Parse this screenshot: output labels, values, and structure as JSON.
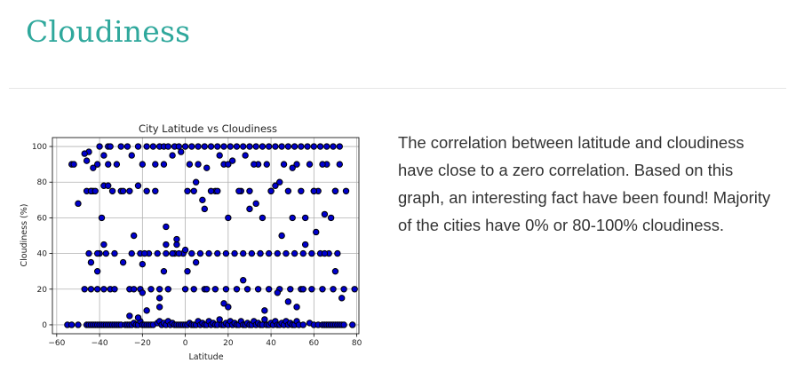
{
  "header": {
    "title": "Cloudiness"
  },
  "description": "The correlation between latitude and cloudiness have close to a zero correlation. Based on this graph, an interesting fact have been found! Majority of the cities have 0% or 80-100% cloudiness.",
  "colors": {
    "title": "#2fa89c",
    "point_fill": "#0000cd",
    "point_edge": "#000000",
    "grid": "#b0b0b0"
  },
  "chart_data": {
    "type": "scatter",
    "title": "City Latitude vs Cloudiness",
    "xlabel": "Latitude",
    "ylabel": "Cloudiness (%)",
    "xlim": [
      -62,
      81
    ],
    "ylim": [
      -5,
      105
    ],
    "xticks": [
      -60,
      -40,
      -20,
      0,
      20,
      40,
      60,
      80
    ],
    "yticks": [
      0,
      20,
      40,
      60,
      80,
      100
    ],
    "grid": true,
    "series": [
      {
        "x": [
          -55,
          -53,
          -50,
          -46,
          -45,
          -44,
          -43,
          -42,
          -41,
          -40,
          -39,
          -38,
          -37,
          -36,
          -35,
          -34,
          -33,
          -32,
          -31,
          -30,
          -28,
          -27,
          -26,
          -25,
          -24,
          -23,
          -22,
          -21,
          -20,
          -19,
          -18,
          -17,
          -16,
          -15,
          -13,
          -12,
          -11,
          -10,
          -9,
          -8,
          -7,
          -6,
          -5,
          -4,
          -3,
          -2,
          -1,
          0,
          1,
          2,
          3,
          4,
          5,
          6,
          7,
          8,
          9,
          10,
          11,
          12,
          13,
          14,
          15,
          16,
          17,
          18,
          19,
          20,
          21,
          22,
          23,
          24,
          25,
          26,
          27,
          28,
          29,
          30,
          31,
          32,
          33,
          34,
          35,
          36,
          37,
          38,
          39,
          40,
          41,
          42,
          43,
          44,
          45,
          46,
          47,
          48,
          49,
          50,
          51,
          52,
          53,
          55,
          58,
          60,
          62,
          64,
          65,
          66,
          67,
          68,
          69,
          70,
          71,
          72,
          73,
          74,
          78,
          -53,
          -52,
          -46,
          -45,
          -44,
          -43,
          -40,
          -38,
          -36,
          -35,
          -32,
          -30,
          -27,
          -25,
          -22,
          -20,
          -18,
          -15,
          -12,
          -10,
          -8,
          -5,
          -3,
          0,
          3,
          6,
          9,
          12,
          15,
          18,
          21,
          24,
          27,
          30,
          33,
          36,
          39,
          42,
          45,
          48,
          51,
          54,
          57,
          60,
          63,
          66,
          69,
          72,
          -46,
          -44,
          -42,
          -40,
          -38,
          -36,
          -34,
          -30,
          -26,
          -22,
          -18,
          -14,
          -10,
          -6,
          -2,
          2,
          6,
          10,
          14,
          18,
          22,
          26,
          30,
          34,
          38,
          42,
          46,
          50,
          54,
          58,
          62,
          66,
          70,
          -45,
          -41,
          -37,
          -33,
          -29,
          -25,
          -21,
          -17,
          -13,
          -9,
          -5,
          -1,
          3,
          7,
          11,
          15,
          19,
          23,
          27,
          31,
          35,
          39,
          43,
          47,
          51,
          55,
          59,
          63,
          67,
          71,
          -47,
          -44,
          -41,
          -38,
          -35,
          -26,
          -21,
          -16,
          -12,
          -8,
          0,
          4,
          9,
          14,
          19,
          24,
          29,
          34,
          39,
          44,
          49,
          54,
          59,
          64,
          69,
          74,
          79,
          -50,
          -43,
          -39,
          -36,
          -33,
          -29,
          -24,
          -19,
          -14,
          -9,
          -4,
          1,
          5,
          10,
          15,
          20,
          25,
          30,
          35,
          40,
          45,
          50,
          55,
          60,
          65,
          70,
          -44,
          -41,
          -24,
          -20,
          -12,
          -10,
          -6,
          -4,
          0,
          4,
          8,
          12,
          16,
          20,
          28,
          32,
          36,
          40,
          44,
          48,
          52,
          56,
          60,
          64,
          68,
          72,
          75,
          -47,
          -41,
          -38,
          -26,
          -22,
          -20,
          -18,
          -12,
          -9,
          -3,
          1,
          5,
          9,
          18,
          20,
          27,
          33,
          37,
          43,
          48,
          52,
          56,
          61,
          65,
          70,
          73
        ],
        "y": [
          0,
          0,
          0,
          0,
          0,
          0,
          0,
          0,
          0,
          0,
          0,
          0,
          0,
          0,
          0,
          0,
          0,
          0,
          0,
          0,
          0,
          0,
          0,
          0,
          1,
          0,
          0,
          2,
          0,
          0,
          0,
          0,
          0,
          0,
          1,
          2,
          0,
          1,
          0,
          2,
          0,
          1,
          0,
          0,
          0,
          0,
          0,
          0,
          0,
          1,
          0,
          0,
          0,
          2,
          0,
          1,
          0,
          0,
          2,
          0,
          1,
          0,
          0,
          3,
          0,
          0,
          1,
          0,
          2,
          0,
          1,
          0,
          0,
          2,
          0,
          0,
          1,
          0,
          0,
          2,
          0,
          1,
          0,
          0,
          3,
          0,
          0,
          1,
          0,
          2,
          0,
          0,
          1,
          0,
          2,
          0,
          1,
          0,
          0,
          2,
          0,
          0,
          1,
          0,
          0,
          0,
          0,
          0,
          0,
          0,
          0,
          0,
          0,
          0,
          0,
          0,
          0,
          90,
          90,
          92,
          97,
          75,
          75,
          100,
          95,
          100,
          100,
          90,
          100,
          100,
          95,
          100,
          90,
          100,
          100,
          100,
          100,
          100,
          100,
          100,
          100,
          100,
          100,
          100,
          100,
          100,
          100,
          100,
          100,
          100,
          100,
          100,
          100,
          100,
          100,
          100,
          100,
          100,
          100,
          100,
          100,
          100,
          100,
          100,
          100,
          75,
          75,
          75,
          40,
          78,
          90,
          75,
          75,
          75,
          78,
          75,
          90,
          90,
          95,
          97,
          90,
          90,
          88,
          75,
          90,
          92,
          75,
          75,
          90,
          90,
          78,
          90,
          88,
          75,
          90,
          75,
          90,
          75,
          40,
          40,
          40,
          40,
          35,
          40,
          40,
          40,
          40,
          40,
          40,
          40,
          40,
          40,
          40,
          40,
          40,
          40,
          40,
          40,
          40,
          40,
          40,
          40,
          40,
          40,
          40,
          40,
          40,
          40,
          20,
          20,
          20,
          20,
          20,
          20,
          20,
          20,
          20,
          20,
          20,
          20,
          20,
          20,
          20,
          20,
          20,
          20,
          20,
          20,
          20,
          20,
          20,
          20,
          20,
          20,
          20,
          68,
          88,
          60,
          78,
          20,
          75,
          50,
          40,
          75,
          55,
          45,
          75,
          80,
          20,
          75,
          60,
          75,
          65,
          40,
          75,
          50,
          60,
          20,
          75,
          40,
          75,
          35,
          30,
          20,
          18,
          15,
          30,
          40,
          48,
          42,
          75,
          70,
          75,
          95,
          90,
          95,
          90,
          60,
          75,
          80,
          75,
          90,
          60,
          75,
          90,
          60,
          90,
          75,
          96,
          90,
          45,
          5,
          4,
          34,
          8,
          10,
          45,
          40,
          30,
          35,
          65,
          12,
          10,
          25,
          68,
          8,
          18,
          13,
          10,
          45,
          52,
          62,
          30,
          15
        ]
      }
    ]
  }
}
